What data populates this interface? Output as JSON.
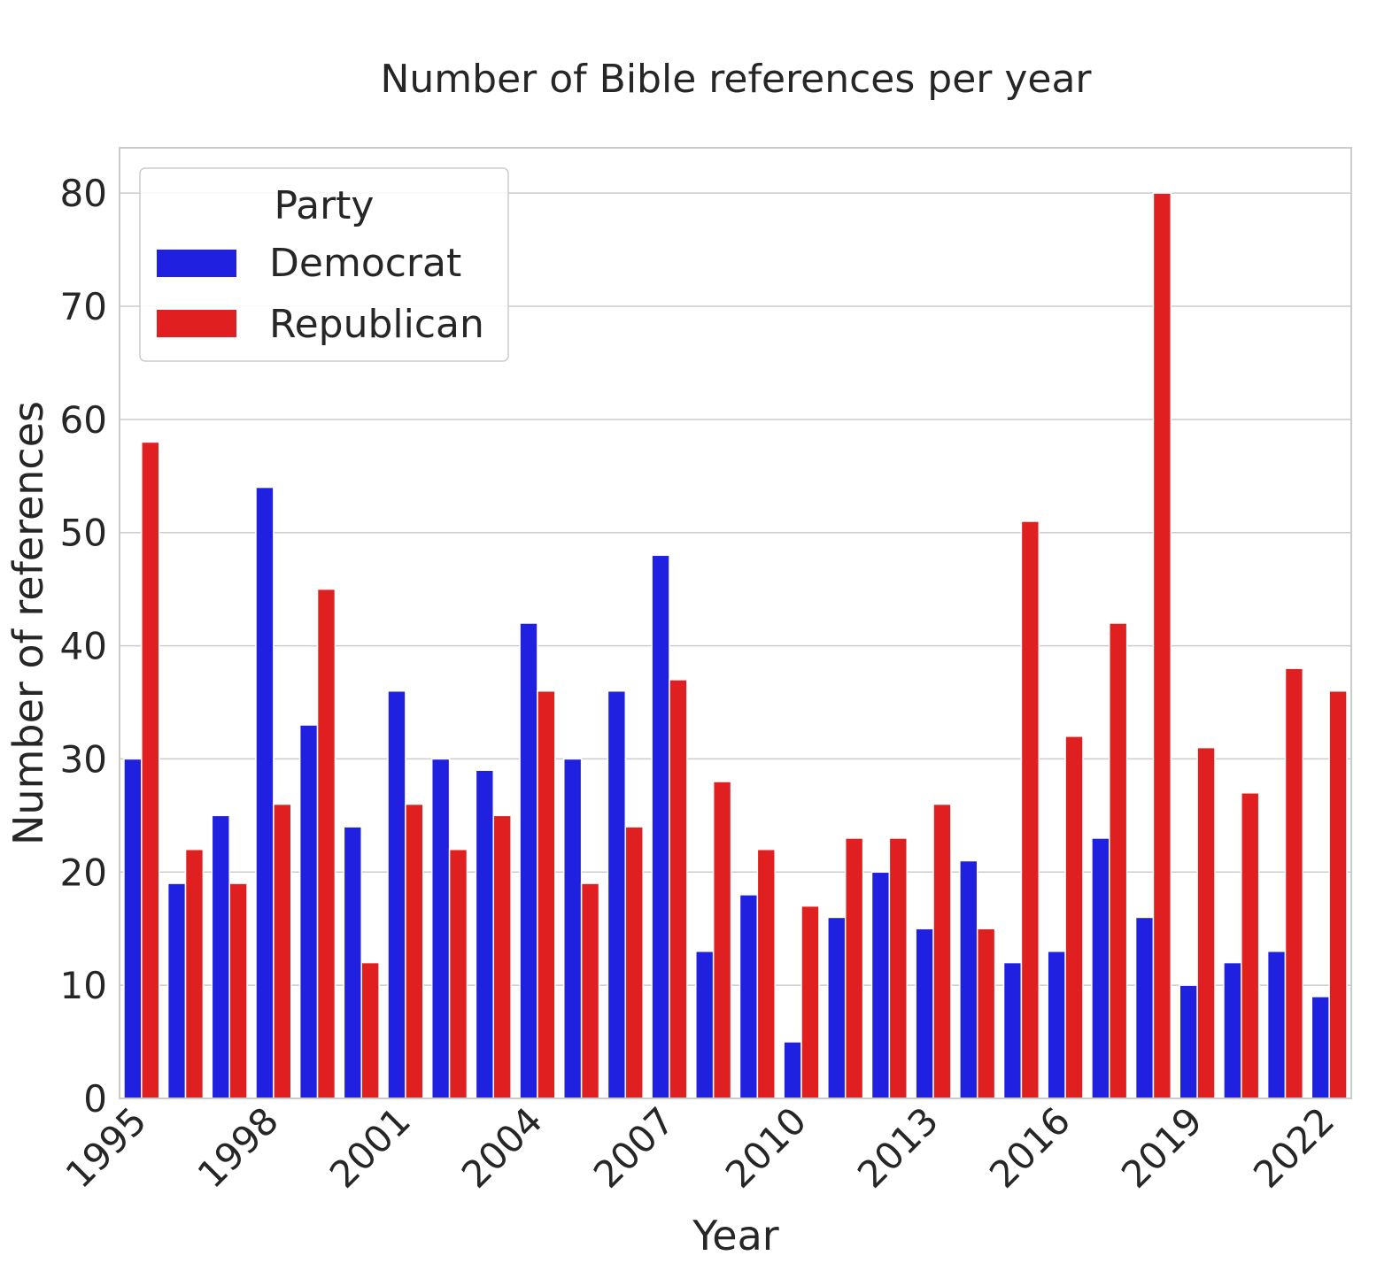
{
  "chart_data": {
    "type": "bar",
    "title": "Number of Bible references per year",
    "xlabel": "Year",
    "ylabel": "Number of references",
    "ylim": [
      0,
      84
    ],
    "yticks": [
      0,
      10,
      20,
      30,
      40,
      50,
      60,
      70,
      80
    ],
    "categories": [
      1995,
      1996,
      1997,
      1998,
      1999,
      2000,
      2001,
      2002,
      2003,
      2004,
      2005,
      2006,
      2007,
      2008,
      2009,
      2010,
      2011,
      2012,
      2013,
      2014,
      2015,
      2016,
      2017,
      2018,
      2019,
      2020,
      2021,
      2022
    ],
    "xticks_shown": [
      1995,
      1998,
      2001,
      2004,
      2007,
      2010,
      2013,
      2016,
      2019,
      2022
    ],
    "grid": true,
    "legend": {
      "title": "Party",
      "placement": "top-left"
    },
    "series": [
      {
        "name": "Democrat",
        "color": "#2020e0",
        "values": [
          30,
          19,
          25,
          54,
          33,
          24,
          36,
          30,
          29,
          42,
          30,
          36,
          48,
          13,
          18,
          5,
          16,
          20,
          15,
          21,
          12,
          13,
          23,
          16,
          10,
          12,
          13,
          9
        ]
      },
      {
        "name": "Republican",
        "color": "#e02020",
        "values": [
          58,
          22,
          19,
          26,
          45,
          12,
          26,
          22,
          25,
          36,
          19,
          24,
          37,
          28,
          22,
          17,
          23,
          23,
          26,
          15,
          51,
          32,
          42,
          80,
          31,
          27,
          38,
          36
        ]
      }
    ]
  }
}
